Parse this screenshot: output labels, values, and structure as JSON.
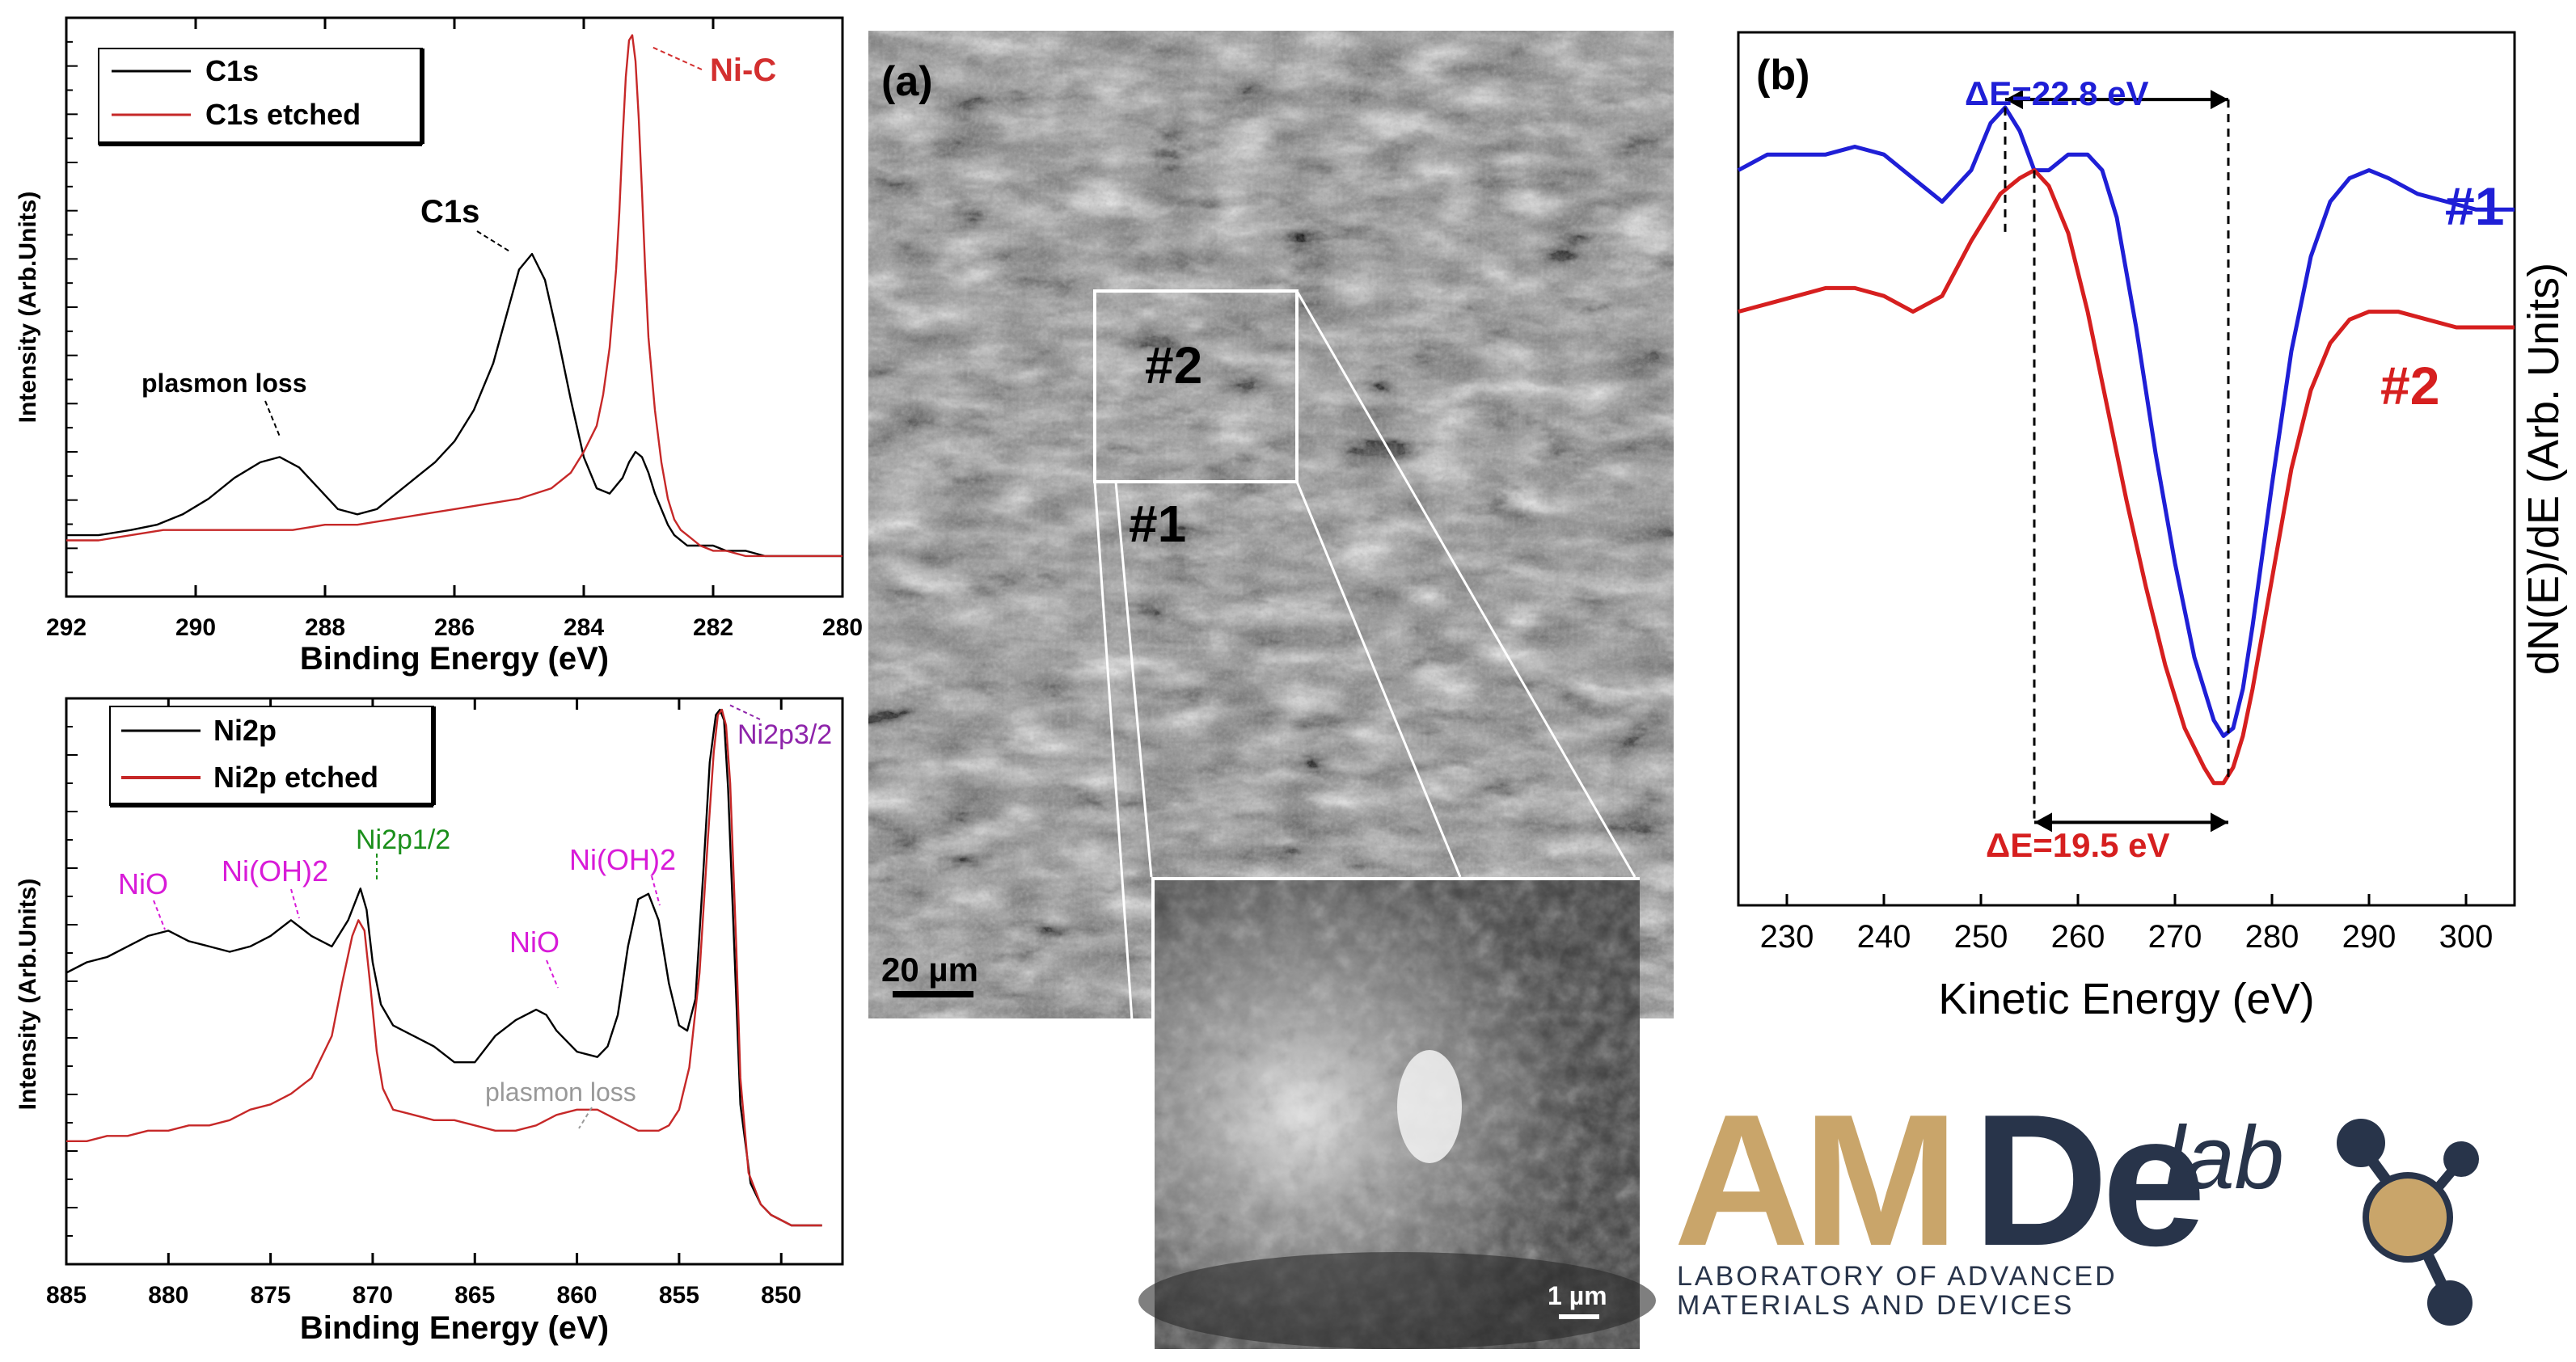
{
  "chart_data": [
    {
      "id": "c1s",
      "type": "line",
      "title": "",
      "xlabel": "Binding Energy (eV)",
      "ylabel": "Intensity (Arb.Units)",
      "xlim": [
        292,
        280
      ],
      "ylim": [
        0,
        1
      ],
      "xticks": [
        "292",
        "290",
        "288",
        "286",
        "284",
        "282",
        "280"
      ],
      "legend": "top-left",
      "legend_entries": [
        "C1s",
        "C1s etched"
      ],
      "series": [
        {
          "name": "C1s",
          "color": "#000000",
          "x": [
            292,
            291.5,
            291,
            290.6,
            290.2,
            289.8,
            289.4,
            289.0,
            288.7,
            288.4,
            288.1,
            287.8,
            287.5,
            287.2,
            286.9,
            286.6,
            286.3,
            286.0,
            285.7,
            285.4,
            285.2,
            285.0,
            284.8,
            284.6,
            284.4,
            284.2,
            284.0,
            283.8,
            283.6,
            283.4,
            283.3,
            283.2,
            283.1,
            283.0,
            282.9,
            282.8,
            282.7,
            282.6,
            282.4,
            282.2,
            282.0,
            281.8,
            281.5,
            281.2,
            280.9,
            280.6,
            280.3,
            280.0
          ],
          "y": [
            0.04,
            0.04,
            0.05,
            0.06,
            0.08,
            0.11,
            0.15,
            0.18,
            0.19,
            0.17,
            0.13,
            0.09,
            0.08,
            0.09,
            0.12,
            0.15,
            0.18,
            0.22,
            0.28,
            0.37,
            0.46,
            0.55,
            0.58,
            0.53,
            0.42,
            0.3,
            0.19,
            0.13,
            0.12,
            0.15,
            0.18,
            0.2,
            0.19,
            0.16,
            0.12,
            0.09,
            0.06,
            0.04,
            0.02,
            0.02,
            0.02,
            0.01,
            0.01,
            0.0,
            0.0,
            0.0,
            0.0,
            0.0
          ]
        },
        {
          "name": "C1s etched",
          "color": "#c62828",
          "x": [
            292,
            291.5,
            291,
            290.5,
            290,
            289.5,
            289,
            288.5,
            288,
            287.5,
            287,
            286.5,
            286,
            285.5,
            285,
            284.5,
            284.2,
            284.0,
            283.8,
            283.7,
            283.6,
            283.5,
            283.45,
            283.4,
            283.35,
            283.3,
            283.25,
            283.2,
            283.15,
            283.1,
            283.05,
            283.0,
            282.9,
            282.8,
            282.7,
            282.6,
            282.5,
            282.4,
            282.3,
            282.2,
            282.0,
            281.8,
            281.5,
            281.0,
            280.5,
            280.0
          ],
          "y": [
            0.03,
            0.03,
            0.04,
            0.05,
            0.05,
            0.05,
            0.05,
            0.05,
            0.06,
            0.06,
            0.07,
            0.08,
            0.09,
            0.1,
            0.11,
            0.13,
            0.16,
            0.2,
            0.25,
            0.31,
            0.4,
            0.55,
            0.66,
            0.8,
            0.92,
            0.99,
            1.0,
            0.95,
            0.84,
            0.7,
            0.55,
            0.42,
            0.28,
            0.18,
            0.11,
            0.07,
            0.05,
            0.04,
            0.03,
            0.02,
            0.01,
            0.01,
            0.0,
            0.0,
            0.0,
            0.0
          ]
        }
      ],
      "annotations": [
        {
          "text": "Ni-C",
          "color": "#d32f2f",
          "x": 283.25,
          "y": 1.0
        },
        {
          "text": "C1s",
          "color": "#000000",
          "x": 285.0,
          "y": 0.58
        },
        {
          "text": "plasmon loss",
          "color": "#000000",
          "x": 288.7,
          "y": 0.19
        }
      ]
    },
    {
      "id": "ni2p",
      "type": "line",
      "title": "",
      "xlabel": "Binding Energy (eV)",
      "ylabel": "Intensity (Arb.Units)",
      "xlim": [
        885,
        847
      ],
      "ylim": [
        0,
        1
      ],
      "xticks": [
        "885",
        "880",
        "875",
        "870",
        "865",
        "860",
        "855",
        "850"
      ],
      "legend": "top-left",
      "legend_entries": [
        "Ni2p",
        "Ni2p etched"
      ],
      "series": [
        {
          "name": "Ni2p",
          "color": "#000000",
          "x": [
            885,
            884,
            883,
            882,
            881,
            880,
            879,
            878,
            877,
            876,
            875,
            874,
            873,
            872,
            871.2,
            870.6,
            870.3,
            870.0,
            869.6,
            869,
            868,
            867,
            866,
            865,
            864,
            863,
            862,
            861.5,
            861,
            860,
            859,
            858.5,
            858,
            857.5,
            857,
            856.5,
            856,
            855.5,
            855,
            854.6,
            854.2,
            853.8,
            853.5,
            853.2,
            853.0,
            852.8,
            852.6,
            852.3,
            852.0,
            851.5,
            851,
            850.5,
            850,
            849.5,
            849,
            848.5,
            848
          ],
          "y": [
            0.5,
            0.52,
            0.53,
            0.55,
            0.57,
            0.58,
            0.56,
            0.55,
            0.54,
            0.55,
            0.57,
            0.6,
            0.57,
            0.55,
            0.6,
            0.66,
            0.62,
            0.52,
            0.44,
            0.4,
            0.38,
            0.36,
            0.33,
            0.33,
            0.38,
            0.41,
            0.43,
            0.42,
            0.39,
            0.35,
            0.34,
            0.36,
            0.42,
            0.55,
            0.64,
            0.65,
            0.6,
            0.48,
            0.4,
            0.39,
            0.45,
            0.7,
            0.9,
            0.99,
            1.0,
            0.98,
            0.85,
            0.55,
            0.25,
            0.1,
            0.06,
            0.04,
            0.03,
            0.02,
            0.02,
            0.02,
            0.02
          ]
        },
        {
          "name": "Ni2p etched",
          "color": "#c62828",
          "x": [
            885,
            884,
            883,
            882,
            881,
            880,
            879,
            878,
            877,
            876,
            875,
            874,
            873,
            872,
            871.5,
            871,
            870.7,
            870.4,
            870.1,
            869.8,
            869.5,
            869,
            868,
            867,
            866,
            865,
            864,
            863,
            862,
            861,
            860,
            859,
            858,
            857,
            856,
            855.5,
            855,
            854.5,
            854,
            853.6,
            853.3,
            853.1,
            852.9,
            852.7,
            852.5,
            852.2,
            852.0,
            851.6,
            851,
            850.5,
            850,
            849.5,
            849,
            848.5,
            848
          ],
          "y": [
            0.18,
            0.18,
            0.19,
            0.19,
            0.2,
            0.2,
            0.21,
            0.21,
            0.22,
            0.24,
            0.25,
            0.27,
            0.3,
            0.38,
            0.48,
            0.57,
            0.6,
            0.58,
            0.47,
            0.35,
            0.28,
            0.24,
            0.23,
            0.22,
            0.22,
            0.21,
            0.2,
            0.2,
            0.21,
            0.23,
            0.24,
            0.24,
            0.22,
            0.2,
            0.2,
            0.21,
            0.24,
            0.32,
            0.5,
            0.75,
            0.92,
            0.99,
            1.0,
            0.97,
            0.86,
            0.55,
            0.3,
            0.12,
            0.06,
            0.04,
            0.03,
            0.02,
            0.02,
            0.02,
            0.02
          ]
        }
      ],
      "annotations": [
        {
          "text": "NiO",
          "color": "#d81bd8",
          "x": 880.0,
          "y": 0.58
        },
        {
          "text": "Ni(OH)2",
          "color": "#d81bd8",
          "x": 874.0,
          "y": 0.6
        },
        {
          "text": "Ni2p1/2",
          "color": "#1b8f1b",
          "x": 870.6,
          "y": 0.66
        },
        {
          "text": "NiO",
          "color": "#d81bd8",
          "x": 862.0,
          "y": 0.43
        },
        {
          "text": "Ni(OH)2",
          "color": "#d81bd8",
          "x": 856.5,
          "y": 0.65
        },
        {
          "text": "Ni2p3/2",
          "color": "#8e24aa",
          "x": 853.0,
          "y": 1.0
        },
        {
          "text": "plasmon loss",
          "color": "#999999",
          "x": 859.5,
          "y": 0.24
        }
      ]
    },
    {
      "id": "auger",
      "type": "line",
      "title": "",
      "panel_label": "(b)",
      "xlabel": "Kinetic Energy (eV)",
      "ylabel": "dN(E)/dE (Arb. Units)",
      "xlim": [
        225,
        305
      ],
      "ylim": [
        0,
        1
      ],
      "xticks": [
        "230",
        "240",
        "250",
        "260",
        "270",
        "280",
        "290",
        "300"
      ],
      "series": [
        {
          "name": "#1",
          "color": "#1f1fd6",
          "x": [
            225,
            228,
            231,
            234,
            237,
            240,
            243,
            246,
            249,
            251,
            252.5,
            254,
            255.5,
            257,
            259,
            261,
            262.5,
            264,
            266,
            268,
            270,
            272,
            274,
            275,
            276,
            277,
            278,
            280,
            282,
            284,
            286,
            288,
            290,
            292,
            295,
            298,
            301,
            305
          ],
          "y": [
            0.88,
            0.9,
            0.9,
            0.9,
            0.91,
            0.9,
            0.87,
            0.84,
            0.88,
            0.94,
            0.96,
            0.93,
            0.88,
            0.88,
            0.9,
            0.9,
            0.88,
            0.82,
            0.68,
            0.52,
            0.38,
            0.26,
            0.18,
            0.16,
            0.17,
            0.22,
            0.3,
            0.48,
            0.65,
            0.77,
            0.84,
            0.87,
            0.88,
            0.87,
            0.85,
            0.84,
            0.83,
            0.83
          ]
        },
        {
          "name": "#2",
          "color": "#d61f1f",
          "x": [
            225,
            228,
            231,
            234,
            237,
            240,
            243,
            246,
            249,
            252,
            254,
            255.5,
            257,
            259,
            261,
            263,
            265,
            267,
            269,
            271,
            273,
            274,
            275,
            276,
            277,
            278,
            280,
            282,
            284,
            286,
            288,
            290,
            293,
            296,
            299,
            302,
            305
          ],
          "y": [
            0.7,
            0.71,
            0.72,
            0.73,
            0.73,
            0.72,
            0.7,
            0.72,
            0.79,
            0.85,
            0.87,
            0.88,
            0.86,
            0.8,
            0.7,
            0.58,
            0.46,
            0.35,
            0.25,
            0.17,
            0.12,
            0.1,
            0.1,
            0.12,
            0.16,
            0.22,
            0.36,
            0.5,
            0.6,
            0.66,
            0.69,
            0.7,
            0.7,
            0.69,
            0.68,
            0.68,
            0.68
          ]
        }
      ],
      "annotations": [
        {
          "text": "ΔE=22.8 eV",
          "color": "#1f1fd6",
          "from": 252.5,
          "to": 275.5
        },
        {
          "text": "ΔE=19.5 eV",
          "color": "#d61f1f",
          "from": 255.5,
          "to": 275.5
        },
        {
          "text": "#1",
          "color": "#1f1fd6"
        },
        {
          "text": "#2",
          "color": "#d61f1f"
        }
      ]
    }
  ],
  "sem": {
    "panel_label": "(a)",
    "scale_bar": "20 µm",
    "region_2": "#2",
    "region_1": "#1",
    "inset_scale_bar": "1 µm"
  },
  "logo": {
    "letters_am": "AM",
    "letters_de": "De",
    "script": "lab",
    "line1": "LABORATORY OF ADVANCED",
    "line2": "MATERIALS AND DEVICES",
    "colors": {
      "gold": "#c9a56a",
      "navy": "#28344a"
    }
  }
}
